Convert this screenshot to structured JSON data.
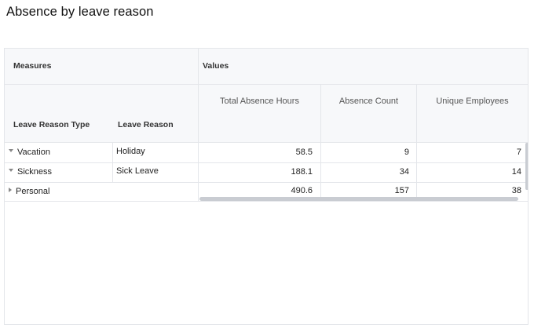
{
  "title": "Absence by leave reason",
  "header": {
    "measures": "Measures",
    "values": "Values",
    "col_leave_type": "Leave Reason Type",
    "col_leave_reason": "Leave Reason",
    "col_total_hours": "Total Absence Hours",
    "col_absence_count": "Absence Count",
    "col_unique_employees": "Unique Employees"
  },
  "rows": [
    {
      "type": "Vacation",
      "reason": "Holiday",
      "hours": "58.5",
      "count": "9",
      "employees": "7",
      "expanded": true
    },
    {
      "type": "Sickness",
      "reason": "Sick Leave",
      "hours": "188.1",
      "count": "34",
      "employees": "14",
      "expanded": true
    },
    {
      "type": "Personal",
      "reason": "",
      "hours": "490.6",
      "count": "157",
      "employees": "38",
      "expanded": false
    }
  ]
}
